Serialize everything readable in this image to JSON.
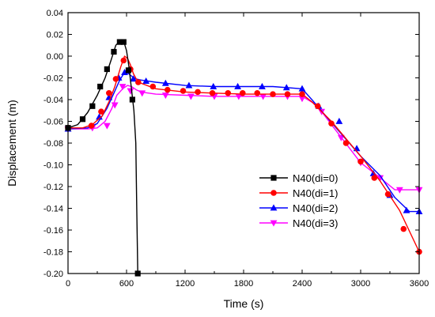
{
  "chart_data": {
    "type": "line",
    "xlabel": "Time (s)",
    "ylabel": "Displacement (m)",
    "xlim": [
      0,
      3600
    ],
    "ylim": [
      -0.2,
      0.04
    ],
    "xticks": [
      0,
      600,
      1200,
      1800,
      2400,
      3000,
      3600
    ],
    "xtick_labels": [
      "0",
      "600",
      "1200",
      "1800",
      "2400",
      "3000",
      "3600"
    ],
    "yticks": [
      -0.2,
      -0.18,
      -0.16,
      -0.14,
      -0.12,
      -0.1,
      -0.08,
      -0.06,
      -0.04,
      -0.02,
      0.0,
      0.02,
      0.04
    ],
    "ytick_labels": [
      "-0.20",
      "-0.18",
      "-0.16",
      "-0.14",
      "-0.12",
      "-0.10",
      "-0.08",
      "-0.06",
      "-0.04",
      "-0.02",
      "0.00",
      "0.02",
      "0.04"
    ],
    "grid": false,
    "legend_position": "center-right",
    "series": [
      {
        "name": "N40(di=0)",
        "color": "#000000",
        "marker": "square",
        "x": [
          0,
          100,
          200,
          300,
          380,
          440,
          490,
          530,
          570,
          600,
          625,
          650,
          675,
          695,
          705,
          715
        ],
        "y": [
          -0.066,
          -0.063,
          -0.052,
          -0.036,
          -0.02,
          -0.004,
          0.01,
          0.014,
          0.014,
          0.005,
          -0.01,
          -0.03,
          -0.05,
          -0.08,
          -0.14,
          -0.2
        ],
        "mx": [
          0,
          150,
          250,
          330,
          400,
          470,
          530,
          570,
          620,
          660,
          715
        ],
        "my": [
          -0.066,
          -0.058,
          -0.046,
          -0.028,
          -0.012,
          0.004,
          0.013,
          0.013,
          -0.013,
          -0.04,
          -0.2
        ]
      },
      {
        "name": "N40(di=1)",
        "color": "#ff0000",
        "marker": "circle",
        "x": [
          0,
          150,
          250,
          350,
          420,
          480,
          540,
          580,
          610,
          640,
          670,
          700,
          750,
          900,
          1200,
          1500,
          1800,
          2100,
          2400,
          2500,
          2700,
          3000,
          3200,
          3400,
          3600
        ],
        "y": [
          -0.066,
          -0.066,
          -0.063,
          -0.055,
          -0.042,
          -0.028,
          -0.01,
          0.0,
          -0.002,
          -0.008,
          -0.016,
          -0.021,
          -0.025,
          -0.03,
          -0.033,
          -0.034,
          -0.035,
          -0.035,
          -0.035,
          -0.042,
          -0.06,
          -0.092,
          -0.115,
          -0.142,
          -0.18
        ],
        "mx": [
          0,
          240,
          340,
          420,
          490,
          570,
          640,
          720,
          870,
          1020,
          1180,
          1330,
          1480,
          1640,
          1790,
          1940,
          2100,
          2250,
          2400,
          2560,
          2700,
          2850,
          3000,
          3140,
          3280,
          3440,
          3600
        ],
        "my": [
          -0.066,
          -0.064,
          -0.051,
          -0.034,
          -0.021,
          -0.004,
          -0.012,
          -0.024,
          -0.028,
          -0.031,
          -0.032,
          -0.033,
          -0.034,
          -0.034,
          -0.034,
          -0.034,
          -0.035,
          -0.035,
          -0.035,
          -0.046,
          -0.062,
          -0.08,
          -0.097,
          -0.112,
          -0.127,
          -0.159,
          -0.18
        ]
      },
      {
        "name": "N40(di=2)",
        "color": "#0000ff",
        "marker": "triangle-up",
        "x": [
          0,
          200,
          300,
          400,
          470,
          530,
          580,
          620,
          660,
          700,
          750,
          900,
          1200,
          1500,
          1800,
          2100,
          2400,
          2500,
          2700,
          3000,
          3200,
          3350,
          3500,
          3600
        ],
        "y": [
          -0.067,
          -0.066,
          -0.062,
          -0.048,
          -0.034,
          -0.022,
          -0.015,
          -0.016,
          -0.019,
          -0.021,
          -0.022,
          -0.024,
          -0.027,
          -0.028,
          -0.028,
          -0.028,
          -0.03,
          -0.04,
          -0.061,
          -0.092,
          -0.11,
          -0.13,
          -0.143,
          -0.143
        ],
        "mx": [
          0,
          320,
          420,
          520,
          580,
          670,
          800,
          1000,
          1240,
          1490,
          1740,
          1990,
          2240,
          2400,
          2570,
          2780,
          2960,
          3130,
          3300,
          3470,
          3600
        ],
        "my": [
          -0.067,
          -0.056,
          -0.038,
          -0.02,
          -0.015,
          -0.021,
          -0.023,
          -0.025,
          -0.027,
          -0.028,
          -0.028,
          -0.028,
          -0.029,
          -0.03,
          -0.046,
          -0.06,
          -0.085,
          -0.108,
          -0.128,
          -0.142,
          -0.143
        ]
      },
      {
        "name": "N40(di=3)",
        "color": "#ff00ff",
        "marker": "triangle-down",
        "x": [
          0,
          200,
          300,
          380,
          450,
          500,
          560,
          610,
          650,
          700,
          750,
          900,
          1200,
          1500,
          1800,
          2100,
          2400,
          2550,
          2700,
          3000,
          3200,
          3350,
          3450,
          3600
        ],
        "y": [
          -0.067,
          -0.067,
          -0.066,
          -0.06,
          -0.048,
          -0.036,
          -0.03,
          -0.027,
          -0.028,
          -0.031,
          -0.033,
          -0.035,
          -0.036,
          -0.037,
          -0.037,
          -0.037,
          -0.037,
          -0.045,
          -0.063,
          -0.098,
          -0.112,
          -0.123,
          -0.123,
          -0.123
        ],
        "mx": [
          0,
          250,
          400,
          480,
          560,
          640,
          760,
          1000,
          1260,
          1500,
          1750,
          2000,
          2250,
          2400,
          2600,
          2800,
          3000,
          3200,
          3400,
          3600
        ],
        "my": [
          -0.067,
          -0.066,
          -0.064,
          -0.045,
          -0.028,
          -0.032,
          -0.034,
          -0.036,
          -0.037,
          -0.037,
          -0.037,
          -0.037,
          -0.037,
          -0.039,
          -0.051,
          -0.075,
          -0.098,
          -0.112,
          -0.123,
          -0.123
        ]
      }
    ]
  }
}
